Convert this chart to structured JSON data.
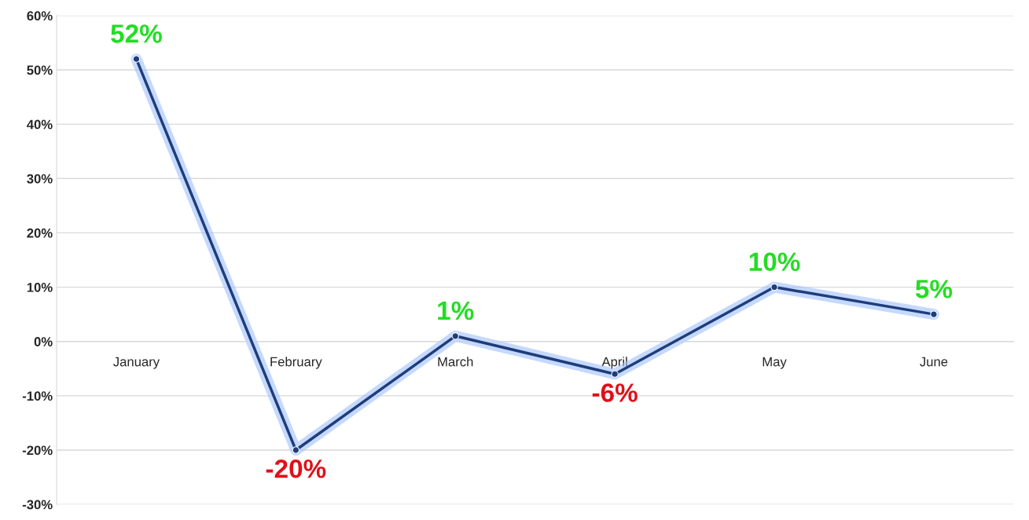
{
  "chart_data": {
    "type": "line",
    "categories": [
      "January",
      "February",
      "March",
      "April",
      "May",
      "June"
    ],
    "series": [
      {
        "color": "#1f3d7a",
        "values": [
          52,
          -20,
          1,
          -6,
          10,
          5
        ],
        "value_labels": [
          "52%",
          "-20%",
          "1%",
          "-6%",
          "10%",
          "5%"
        ]
      }
    ],
    "ylim": [
      -30,
      60
    ],
    "yticks": [
      {
        "value": -30,
        "label": "-30%"
      },
      {
        "value": -20,
        "label": "-20%"
      },
      {
        "value": -10,
        "label": "-10%"
      },
      {
        "value": 0,
        "label": "0%"
      },
      {
        "value": 10,
        "label": "10%"
      },
      {
        "value": 20,
        "label": "20%"
      },
      {
        "value": 30,
        "label": "30%"
      },
      {
        "value": 40,
        "label": "40%"
      },
      {
        "value": 50,
        "label": "50%"
      },
      {
        "value": 60,
        "label": "60%"
      }
    ],
    "grid": "y",
    "marker": "circle",
    "line_style": "solid",
    "legend": false
  }
}
